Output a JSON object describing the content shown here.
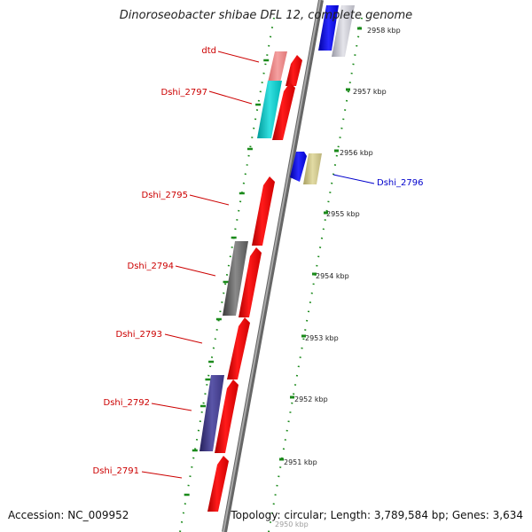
{
  "title": "Dinoroseobacter shibae DFL 12, complete genome",
  "footer": {
    "accession": "Accession: NC_009952",
    "summary": "Topology: circular; Length: 3,789,584 bp; Genes: 3,634"
  },
  "colors": {
    "backbone": "#888888",
    "tick": "#1a8a1a",
    "gene_red": "#ff0000",
    "label_red": "#cc0000",
    "label_blue": "#0000cc"
  },
  "scale_ticks": [
    "2958 kbp",
    "2957 kbp",
    "2956 kbp",
    "2955 kbp",
    "2954 kbp",
    "2953 kbp",
    "2952 kbp",
    "2951 kbp",
    "2950 kbp"
  ],
  "genes": [
    {
      "label": "dtd",
      "color": "red"
    },
    {
      "label": "Dshi_2797",
      "color": "red"
    },
    {
      "label": "Dshi_2796",
      "color": "blue"
    },
    {
      "label": "Dshi_2795",
      "color": "red"
    },
    {
      "label": "Dshi_2794",
      "color": "red"
    },
    {
      "label": "Dshi_2793",
      "color": "red"
    },
    {
      "label": "Dshi_2792",
      "color": "red"
    },
    {
      "label": "Dshi_2791",
      "color": "red"
    }
  ]
}
